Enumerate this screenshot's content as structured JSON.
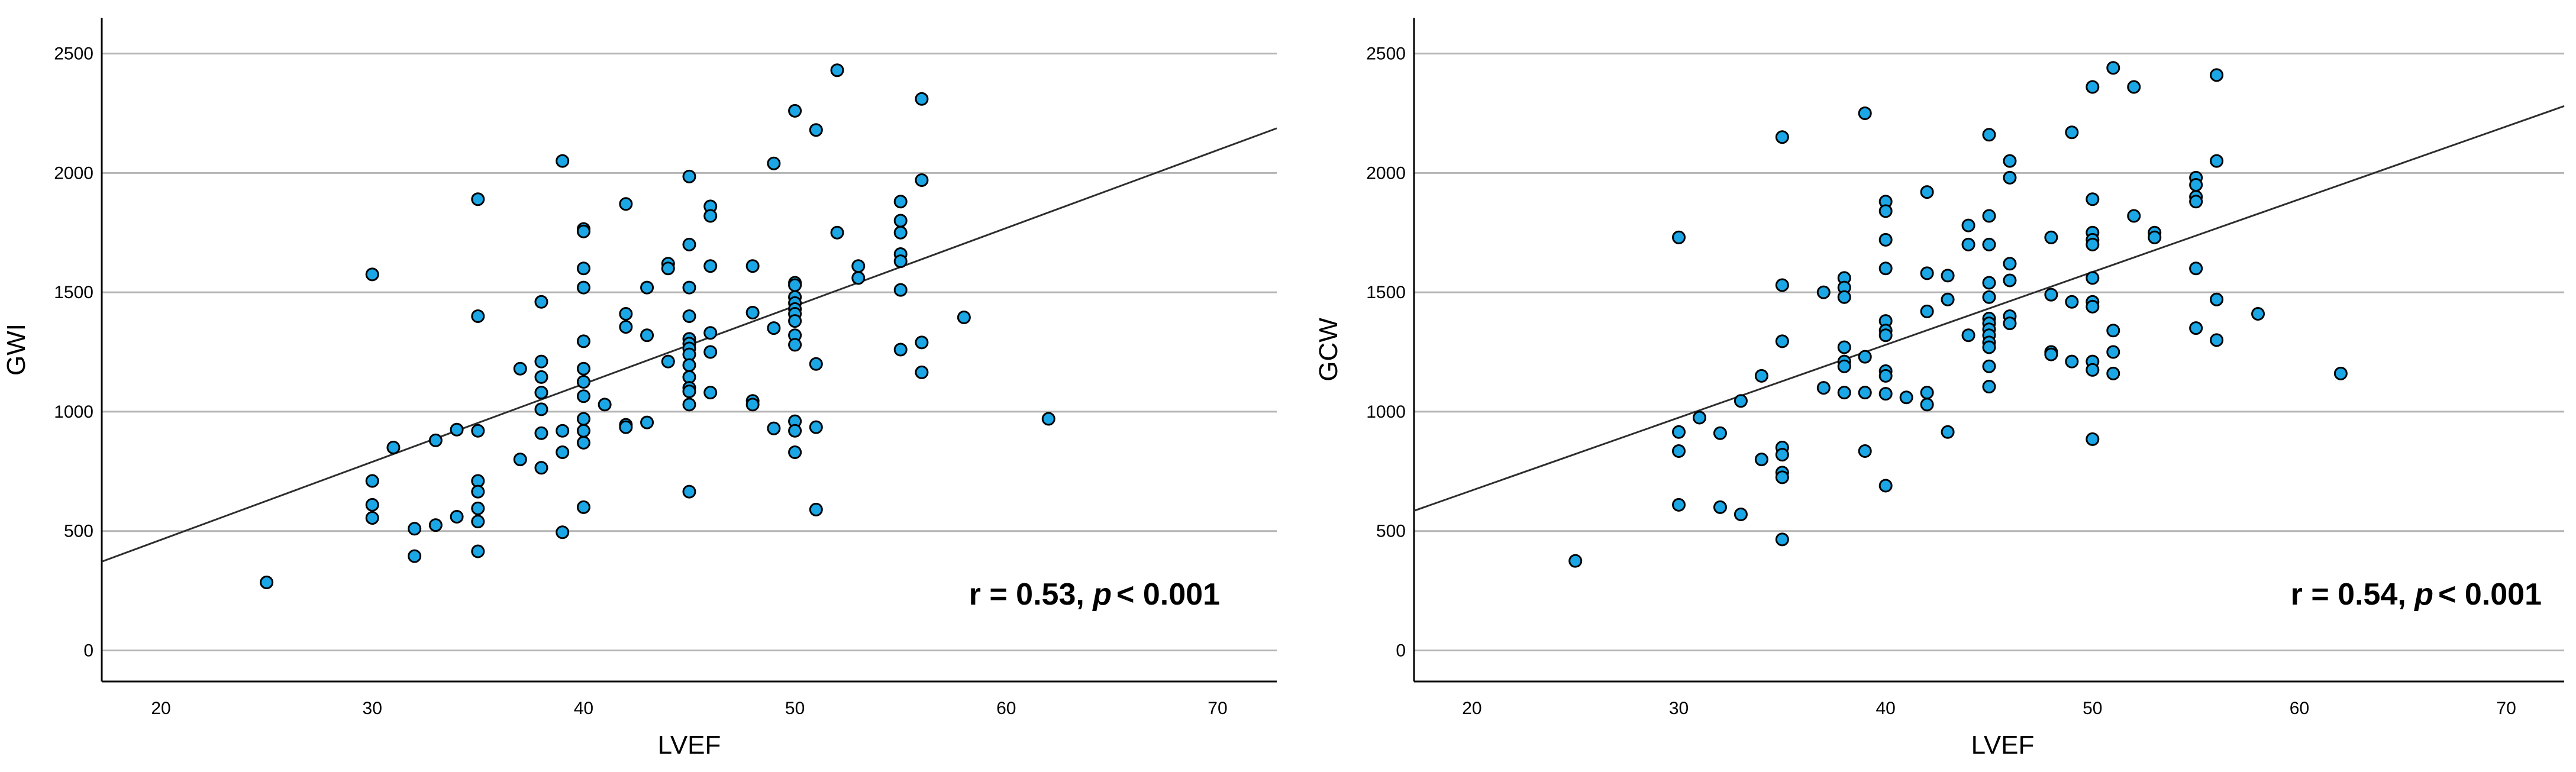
{
  "chart_data": [
    {
      "type": "scatter",
      "xlabel": "LVEF",
      "ylabel": "GWI",
      "xlim": [
        17.2,
        72.8
      ],
      "ylim": [
        -130,
        2650
      ],
      "xticks": [
        20,
        30,
        40,
        50,
        60,
        70
      ],
      "yticks": [
        0,
        500,
        1000,
        1500,
        2000,
        2500
      ],
      "grid": "horizontal",
      "annotation": {
        "r": "r = 0.53, ",
        "p_symbol": "p",
        "p_value": "< 0.001"
      },
      "fit_line": {
        "x": [
          17.2,
          72.8
        ],
        "y": [
          372,
          2187
        ]
      },
      "point_color": "#1ba6e6",
      "points": [
        [
          25,
          285
        ],
        [
          30,
          1575
        ],
        [
          30,
          710
        ],
        [
          30,
          610
        ],
        [
          30,
          555
        ],
        [
          31,
          850
        ],
        [
          32,
          510
        ],
        [
          32,
          395
        ],
        [
          33,
          880
        ],
        [
          33,
          525
        ],
        [
          34,
          560
        ],
        [
          34,
          925
        ],
        [
          35,
          1890
        ],
        [
          35,
          1400
        ],
        [
          35,
          920
        ],
        [
          35,
          710
        ],
        [
          35,
          665
        ],
        [
          35,
          595
        ],
        [
          35,
          540
        ],
        [
          35,
          415
        ],
        [
          37,
          1180
        ],
        [
          37,
          800
        ],
        [
          38,
          1460
        ],
        [
          38,
          1210
        ],
        [
          38,
          1145
        ],
        [
          38,
          1080
        ],
        [
          38,
          1010
        ],
        [
          38,
          910
        ],
        [
          38,
          765
        ],
        [
          39,
          2050
        ],
        [
          39,
          920
        ],
        [
          39,
          830
        ],
        [
          39,
          495
        ],
        [
          40,
          1765
        ],
        [
          40,
          1755
        ],
        [
          40,
          1600
        ],
        [
          40,
          1520
        ],
        [
          40,
          1295
        ],
        [
          40,
          1180
        ],
        [
          40,
          1125
        ],
        [
          40,
          1065
        ],
        [
          40,
          970
        ],
        [
          40,
          920
        ],
        [
          40,
          870
        ],
        [
          40,
          600
        ],
        [
          41,
          1030
        ],
        [
          42,
          1870
        ],
        [
          42,
          1410
        ],
        [
          42,
          1355
        ],
        [
          42,
          945
        ],
        [
          42,
          935
        ],
        [
          43,
          1520
        ],
        [
          43,
          1320
        ],
        [
          43,
          955
        ],
        [
          44,
          1620
        ],
        [
          44,
          1600
        ],
        [
          44,
          1210
        ],
        [
          45,
          1985
        ],
        [
          45,
          1700
        ],
        [
          45,
          1520
        ],
        [
          45,
          1400
        ],
        [
          45,
          1305
        ],
        [
          45,
          1285
        ],
        [
          45,
          1265
        ],
        [
          45,
          1240
        ],
        [
          45,
          1195
        ],
        [
          45,
          1145
        ],
        [
          45,
          1100
        ],
        [
          45,
          1085
        ],
        [
          45,
          1030
        ],
        [
          45,
          665
        ],
        [
          46,
          1860
        ],
        [
          46,
          1820
        ],
        [
          46,
          1610
        ],
        [
          46,
          1330
        ],
        [
          46,
          1250
        ],
        [
          46,
          1080
        ],
        [
          48,
          1610
        ],
        [
          48,
          1415
        ],
        [
          48,
          1045
        ],
        [
          48,
          1030
        ],
        [
          49,
          2040
        ],
        [
          49,
          1350
        ],
        [
          49,
          930
        ],
        [
          50,
          2260
        ],
        [
          50,
          1540
        ],
        [
          50,
          1530
        ],
        [
          50,
          1480
        ],
        [
          50,
          1455
        ],
        [
          50,
          1430
        ],
        [
          50,
          1410
        ],
        [
          50,
          1380
        ],
        [
          50,
          1320
        ],
        [
          50,
          1280
        ],
        [
          50,
          960
        ],
        [
          50,
          920
        ],
        [
          50,
          830
        ],
        [
          51,
          2180
        ],
        [
          51,
          1200
        ],
        [
          51,
          935
        ],
        [
          51,
          590
        ],
        [
          52,
          2430
        ],
        [
          52,
          1750
        ],
        [
          53,
          1610
        ],
        [
          53,
          1560
        ],
        [
          55,
          1880
        ],
        [
          55,
          1800
        ],
        [
          55,
          1750
        ],
        [
          55,
          1660
        ],
        [
          55,
          1630
        ],
        [
          55,
          1510
        ],
        [
          55,
          1260
        ],
        [
          56,
          2310
        ],
        [
          56,
          1970
        ],
        [
          56,
          1290
        ],
        [
          56,
          1165
        ],
        [
          58,
          1395
        ],
        [
          62,
          970
        ]
      ]
    },
    {
      "type": "scatter",
      "xlabel": "LVEF",
      "ylabel": "GCW",
      "xlim": [
        17.2,
        72.8
      ],
      "ylim": [
        -130,
        2650
      ],
      "xticks": [
        20,
        30,
        40,
        50,
        60,
        70
      ],
      "yticks": [
        0,
        500,
        1000,
        1500,
        2000,
        2500
      ],
      "grid": "horizontal",
      "annotation": {
        "r": "r = 0.54, ",
        "p_symbol": "p",
        "p_value": "< 0.001"
      },
      "fit_line": {
        "x": [
          17.2,
          72.8
        ],
        "y": [
          585,
          2280
        ]
      },
      "point_color": "#1ba6e6",
      "points": [
        [
          25,
          375
        ],
        [
          30,
          1730
        ],
        [
          30,
          915
        ],
        [
          30,
          835
        ],
        [
          30,
          610
        ],
        [
          31,
          975
        ],
        [
          32,
          910
        ],
        [
          32,
          600
        ],
        [
          33,
          1045
        ],
        [
          33,
          570
        ],
        [
          34,
          1150
        ],
        [
          34,
          800
        ],
        [
          35,
          2150
        ],
        [
          35,
          1530
        ],
        [
          35,
          1295
        ],
        [
          35,
          850
        ],
        [
          35,
          820
        ],
        [
          35,
          745
        ],
        [
          35,
          725
        ],
        [
          35,
          465
        ],
        [
          37,
          1500
        ],
        [
          37,
          1100
        ],
        [
          38,
          1560
        ],
        [
          38,
          1520
        ],
        [
          38,
          1480
        ],
        [
          38,
          1270
        ],
        [
          38,
          1210
        ],
        [
          38,
          1190
        ],
        [
          38,
          1080
        ],
        [
          39,
          2250
        ],
        [
          39,
          1230
        ],
        [
          39,
          1080
        ],
        [
          39,
          835
        ],
        [
          40,
          1880
        ],
        [
          40,
          1840
        ],
        [
          40,
          1720
        ],
        [
          40,
          1600
        ],
        [
          40,
          1380
        ],
        [
          40,
          1340
        ],
        [
          40,
          1320
        ],
        [
          40,
          1170
        ],
        [
          40,
          1150
        ],
        [
          40,
          1075
        ],
        [
          40,
          690
        ],
        [
          41,
          1060
        ],
        [
          42,
          1920
        ],
        [
          42,
          1580
        ],
        [
          42,
          1420
        ],
        [
          42,
          1080
        ],
        [
          42,
          1030
        ],
        [
          43,
          1570
        ],
        [
          43,
          1470
        ],
        [
          43,
          915
        ],
        [
          44,
          1780
        ],
        [
          44,
          1700
        ],
        [
          44,
          1320
        ],
        [
          45,
          2160
        ],
        [
          45,
          1820
        ],
        [
          45,
          1700
        ],
        [
          45,
          1540
        ],
        [
          45,
          1480
        ],
        [
          45,
          1390
        ],
        [
          45,
          1370
        ],
        [
          45,
          1345
        ],
        [
          45,
          1320
        ],
        [
          45,
          1290
        ],
        [
          45,
          1270
        ],
        [
          45,
          1190
        ],
        [
          45,
          1105
        ],
        [
          46,
          2050
        ],
        [
          46,
          1980
        ],
        [
          46,
          1620
        ],
        [
          46,
          1550
        ],
        [
          46,
          1400
        ],
        [
          46,
          1370
        ],
        [
          48,
          1730
        ],
        [
          48,
          1490
        ],
        [
          48,
          1250
        ],
        [
          48,
          1240
        ],
        [
          49,
          2170
        ],
        [
          49,
          1460
        ],
        [
          49,
          1210
        ],
        [
          50,
          2360
        ],
        [
          50,
          1890
        ],
        [
          50,
          1750
        ],
        [
          50,
          1720
        ],
        [
          50,
          1700
        ],
        [
          50,
          1560
        ],
        [
          50,
          1460
        ],
        [
          50,
          1440
        ],
        [
          50,
          1210
        ],
        [
          50,
          1175
        ],
        [
          50,
          885
        ],
        [
          51,
          2440
        ],
        [
          51,
          1340
        ],
        [
          51,
          1250
        ],
        [
          51,
          1160
        ],
        [
          52,
          2360
        ],
        [
          52,
          1820
        ],
        [
          53,
          1750
        ],
        [
          53,
          1730
        ],
        [
          55,
          1980
        ],
        [
          55,
          1950
        ],
        [
          55,
          1900
        ],
        [
          55,
          1880
        ],
        [
          55,
          1600
        ],
        [
          55,
          1350
        ],
        [
          56,
          2410
        ],
        [
          56,
          2050
        ],
        [
          56,
          1470
        ],
        [
          56,
          1300
        ],
        [
          58,
          1410
        ],
        [
          62,
          1160
        ]
      ]
    }
  ]
}
